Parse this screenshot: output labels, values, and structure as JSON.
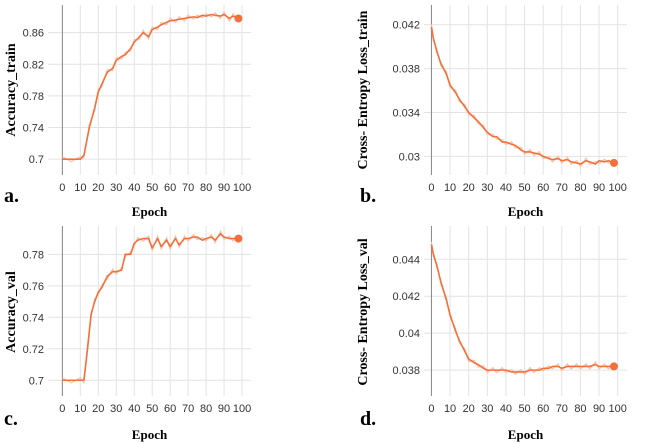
{
  "colors": {
    "line": "#f4703a",
    "raw": "#f9c2aa",
    "grid": "#e3e3e3",
    "axis": "#888888"
  },
  "chart_data": [
    {
      "type": "line",
      "panel_label": "a.",
      "xlabel": "Epoch",
      "ylabel": "Accuracy_train",
      "xlim": [
        -8,
        105
      ],
      "ylim": [
        0.68,
        0.895
      ],
      "xticks": [
        0,
        10,
        20,
        30,
        40,
        50,
        60,
        70,
        80,
        90,
        100
      ],
      "xtick_labels": [
        "0",
        "10",
        "20",
        "30",
        "40",
        "50",
        "60",
        "70",
        "80",
        "90",
        "100"
      ],
      "yticks": [
        0.7,
        0.74,
        0.78,
        0.82,
        0.86
      ],
      "ytick_labels": [
        "0.7",
        "0.74",
        "0.78",
        "0.82",
        "0.86"
      ],
      "series": [
        {
          "name": "Accuracy_train",
          "x": [
            0,
            5,
            10,
            12,
            15,
            18,
            20,
            22,
            25,
            28,
            30,
            33,
            35,
            38,
            40,
            43,
            45,
            48,
            50,
            53,
            55,
            58,
            60,
            63,
            65,
            68,
            70,
            73,
            75,
            78,
            80,
            83,
            85,
            88,
            90,
            93,
            95,
            98
          ],
          "y": [
            0.7,
            0.7,
            0.7,
            0.705,
            0.74,
            0.765,
            0.785,
            0.795,
            0.81,
            0.815,
            0.825,
            0.83,
            0.832,
            0.84,
            0.848,
            0.855,
            0.86,
            0.855,
            0.864,
            0.867,
            0.87,
            0.873,
            0.875,
            0.876,
            0.877,
            0.878,
            0.879,
            0.88,
            0.879,
            0.882,
            0.881,
            0.883,
            0.882,
            0.881,
            0.883,
            0.878,
            0.881,
            0.878
          ]
        }
      ]
    },
    {
      "type": "line",
      "panel_label": "b.",
      "xlabel": "Epoch",
      "ylabel": "Cross- Entropy Loss_train",
      "xlim": [
        -4,
        105
      ],
      "ylim": [
        0.0283,
        0.0438
      ],
      "xticks": [
        0,
        10,
        20,
        30,
        40,
        50,
        60,
        70,
        80,
        90,
        100
      ],
      "xtick_labels": [
        "0",
        "10",
        "20",
        "30",
        "40",
        "50",
        "60",
        "70",
        "80",
        "90",
        "100"
      ],
      "yticks": [
        0.03,
        0.034,
        0.038,
        0.042
      ],
      "ytick_labels": [
        "0.03",
        "0.034",
        "0.038",
        "0.042"
      ],
      "series": [
        {
          "name": "Cross- Entropy Loss_train",
          "x": [
            0,
            1,
            3,
            5,
            8,
            10,
            13,
            15,
            18,
            20,
            23,
            25,
            28,
            30,
            33,
            35,
            38,
            40,
            43,
            45,
            48,
            50,
            53,
            55,
            58,
            60,
            63,
            65,
            68,
            70,
            73,
            75,
            78,
            80,
            83,
            85,
            88,
            90,
            93,
            95,
            98
          ],
          "y": [
            0.0418,
            0.0408,
            0.0395,
            0.0385,
            0.0375,
            0.0365,
            0.0358,
            0.0352,
            0.0345,
            0.034,
            0.0335,
            0.0332,
            0.0326,
            0.0322,
            0.0318,
            0.0318,
            0.0313,
            0.0313,
            0.0311,
            0.031,
            0.0306,
            0.0304,
            0.0304,
            0.0303,
            0.0302,
            0.03,
            0.0298,
            0.0297,
            0.0298,
            0.0296,
            0.0297,
            0.0295,
            0.0294,
            0.0293,
            0.0296,
            0.0295,
            0.0293,
            0.0296,
            0.0295,
            0.0296,
            0.0294
          ]
        }
      ]
    },
    {
      "type": "line",
      "panel_label": "c.",
      "xlabel": "Epoch",
      "ylabel": "Accuracy_val",
      "xlim": [
        -8,
        105
      ],
      "ylim": [
        0.69,
        0.798
      ],
      "xticks": [
        0,
        10,
        20,
        30,
        40,
        50,
        60,
        70,
        80,
        90,
        100
      ],
      "xtick_labels": [
        "0",
        "10",
        "20",
        "30",
        "40",
        "50",
        "60",
        "70",
        "80",
        "90",
        "100"
      ],
      "yticks": [
        0.7,
        0.72,
        0.74,
        0.76,
        0.78
      ],
      "ytick_labels": [
        "0.7",
        "0.72",
        "0.74",
        "0.76",
        "0.78"
      ],
      "series": [
        {
          "name": "Accuracy_val",
          "x": [
            0,
            5,
            10,
            12,
            14,
            16,
            18,
            20,
            22,
            25,
            28,
            30,
            33,
            35,
            38,
            40,
            42,
            45,
            48,
            50,
            53,
            55,
            58,
            60,
            63,
            65,
            68,
            70,
            73,
            75,
            78,
            80,
            83,
            85,
            88,
            90,
            93,
            95,
            98
          ],
          "y": [
            0.7,
            0.7,
            0.7,
            0.7,
            0.72,
            0.742,
            0.75,
            0.756,
            0.759,
            0.766,
            0.769,
            0.769,
            0.77,
            0.78,
            0.78,
            0.787,
            0.789,
            0.79,
            0.79,
            0.784,
            0.79,
            0.785,
            0.789,
            0.785,
            0.79,
            0.786,
            0.79,
            0.79,
            0.791,
            0.791,
            0.789,
            0.79,
            0.791,
            0.789,
            0.793,
            0.791,
            0.79,
            0.79,
            0.79
          ]
        }
      ]
    },
    {
      "type": "line",
      "panel_label": "d.",
      "xlabel": "Epoch",
      "ylabel": "Cross- Entropy Loss_val",
      "xlim": [
        -4,
        105
      ],
      "ylim": [
        0.0366,
        0.0458
      ],
      "xticks": [
        0,
        10,
        20,
        30,
        40,
        50,
        60,
        70,
        80,
        90,
        100
      ],
      "xtick_labels": [
        "0",
        "10",
        "20",
        "30",
        "40",
        "50",
        "60",
        "70",
        "80",
        "90",
        "100"
      ],
      "yticks": [
        0.038,
        0.04,
        0.042,
        0.044
      ],
      "ytick_labels": [
        "0.038",
        "0.04",
        "0.042",
        "0.044"
      ],
      "series": [
        {
          "name": "Cross- Entropy Loss_val",
          "x": [
            0,
            1,
            3,
            5,
            8,
            10,
            13,
            15,
            18,
            20,
            23,
            25,
            28,
            30,
            33,
            35,
            38,
            40,
            43,
            45,
            48,
            50,
            53,
            55,
            58,
            60,
            63,
            65,
            68,
            70,
            73,
            75,
            78,
            80,
            83,
            85,
            88,
            90,
            93,
            95,
            98
          ],
          "y": [
            0.0448,
            0.0443,
            0.0436,
            0.0428,
            0.0418,
            0.041,
            0.0401,
            0.0396,
            0.039,
            0.0386,
            0.0384,
            0.0383,
            0.0381,
            0.038,
            0.038,
            0.038,
            0.038,
            0.038,
            0.0379,
            0.0379,
            0.0379,
            0.0379,
            0.038,
            0.038,
            0.038,
            0.0381,
            0.0381,
            0.0382,
            0.0382,
            0.0381,
            0.0382,
            0.0382,
            0.0382,
            0.0382,
            0.0382,
            0.0382,
            0.0383,
            0.0382,
            0.0382,
            0.0382,
            0.0382
          ]
        }
      ]
    }
  ]
}
